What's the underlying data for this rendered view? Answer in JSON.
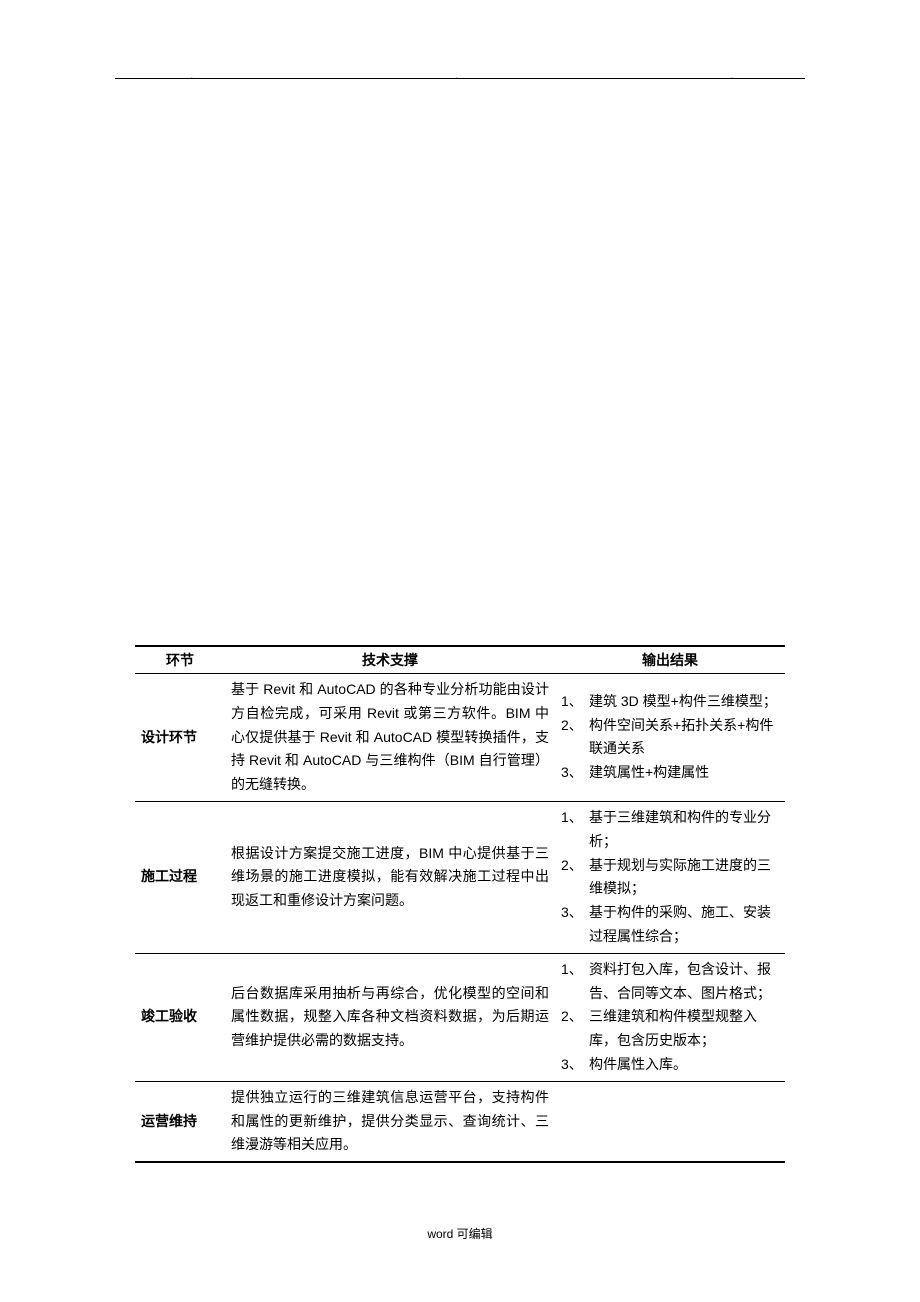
{
  "header": {
    "dot1": ".",
    "dot2": ".",
    "dot3": "."
  },
  "table": {
    "headers": {
      "phase": "环节",
      "tech": "技术支撑",
      "output": "输出结果"
    },
    "rows": [
      {
        "phase": "设计环节",
        "tech": "基于 Revit 和 AutoCAD 的各种专业分析功能由设计方自检完成，可采用 Revit 或第三方软件。BIM 中心仅提供基于 Revit 和 AutoCAD 模型转换插件，支持 Revit 和 AutoCAD 与三维构件（BIM 自行管理）的无缝转换。",
        "output": [
          {
            "num": "1、",
            "text": "建筑 3D 模型+构件三维模型；"
          },
          {
            "num": "2、",
            "text": "构件空间关系+拓扑关系+构件联通关系"
          },
          {
            "num": "3、",
            "text": "建筑属性+构建属性"
          }
        ]
      },
      {
        "phase": "施工过程",
        "tech": "根据设计方案提交施工进度，BIM 中心提供基于三维场景的施工进度模拟，能有效解决施工过程中出现返工和重修设计方案问题。",
        "output": [
          {
            "num": "1、",
            "text": "基于三维建筑和构件的专业分析；"
          },
          {
            "num": "2、",
            "text": "基于规划与实际施工进度的三维模拟；"
          },
          {
            "num": "3、",
            "text": "基于构件的采购、施工、安装过程属性综合；"
          }
        ]
      },
      {
        "phase": "竣工验收",
        "tech": "后台数据库采用抽析与再综合，优化模型的空间和属性数据，规整入库各种文档资料数据，为后期运营维护提供必需的数据支持。",
        "output": [
          {
            "num": "1、",
            "text": "资料打包入库，包含设计、报告、合同等文本、图片格式；"
          },
          {
            "num": "2、",
            "text": "三维建筑和构件模型规整入库，包含历史版本；"
          },
          {
            "num": "3、",
            "text": "构件属性入库。"
          }
        ]
      },
      {
        "phase": "运营维持",
        "tech": "提供独立运行的三维建筑信息运营平台，支持构件和属性的更新维护，提供分类显示、查询统计、三维漫游等相关应用。",
        "output": []
      }
    ]
  },
  "footer": {
    "text": "word 可编辑"
  }
}
